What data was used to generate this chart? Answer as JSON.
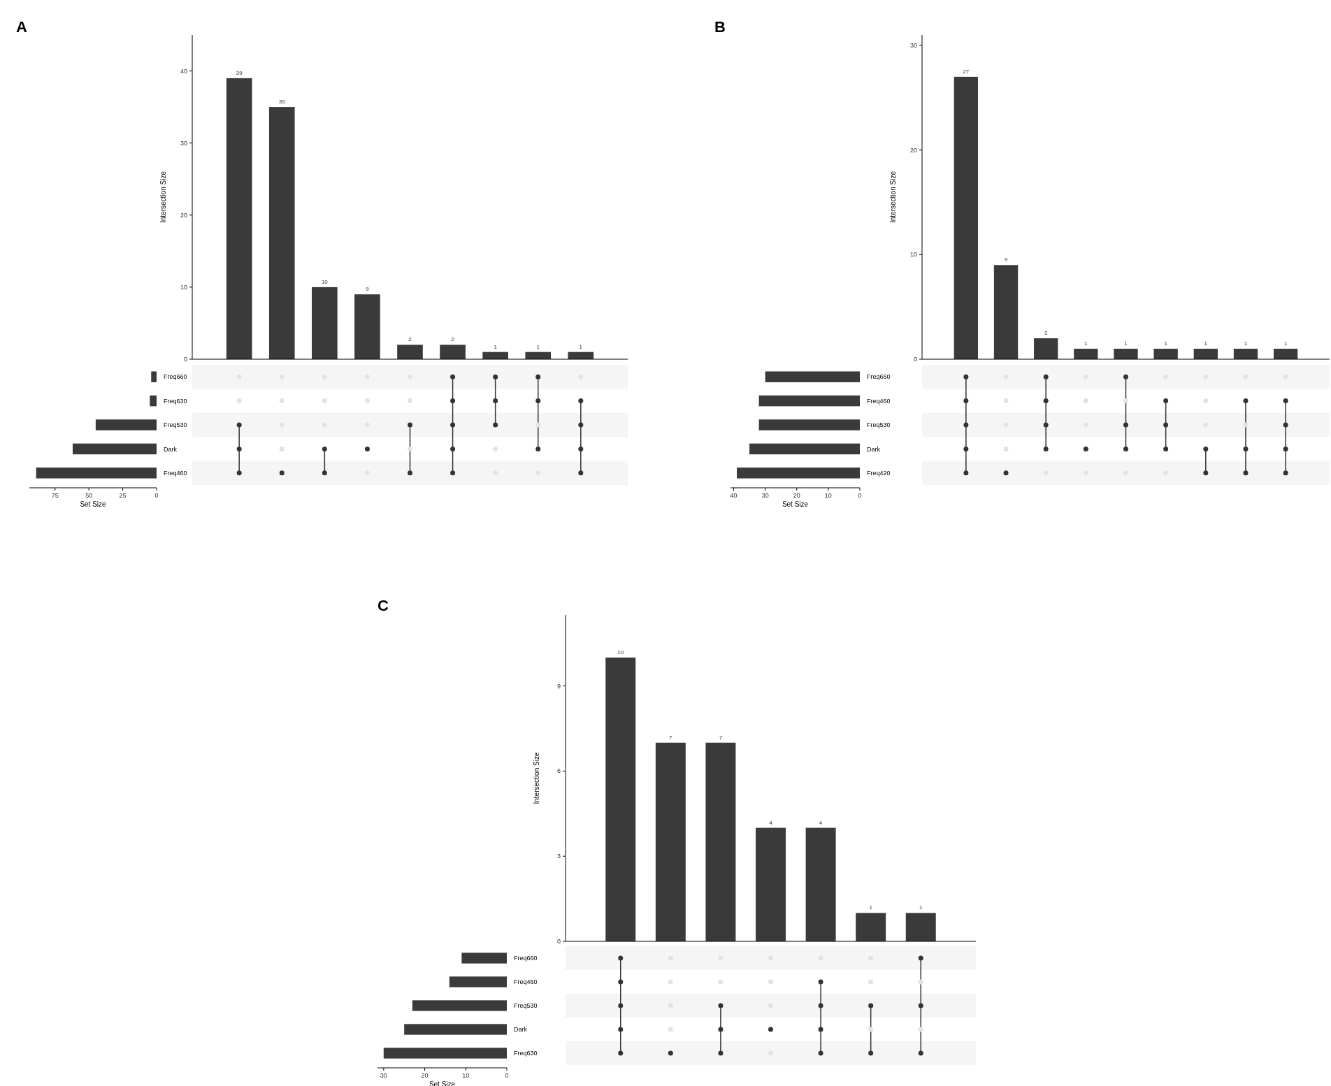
{
  "chart_data": [
    {
      "type": "bar",
      "ylabel": "Intersection Size",
      "categories": [
        null,
        null,
        null,
        null,
        null,
        null,
        null,
        null,
        null
      ],
      "values": [
        39,
        35,
        10,
        9,
        2,
        2,
        1,
        1,
        1
      ],
      "color": "#3a3a3a",
      "ylim": [
        0,
        45
      ],
      "yticks": [
        0,
        10,
        20,
        30,
        40
      ],
      "data_labels": true
    },
    {
      "type": "bar",
      "title": "A",
      "orientation": "horizontal",
      "xlabel": "Set Size",
      "categories": [
        "Freq660",
        "Freq630",
        "Freq530",
        "Dark",
        "Freq460"
      ],
      "values": [
        4,
        5,
        45,
        62,
        89
      ],
      "color": "#3a3a3a",
      "xlim": [
        94,
        0
      ],
      "xticks": [
        75,
        50,
        25,
        0
      ]
    },
    {
      "type": "bar",
      "ylabel": "Intersection Size",
      "categories": [
        null,
        null,
        null,
        null,
        null,
        null,
        null,
        null,
        null
      ],
      "values": [
        27,
        9,
        2,
        1,
        1,
        1,
        1,
        1,
        1
      ],
      "color": "#3a3a3a",
      "ylim": [
        0,
        31
      ],
      "yticks": [
        0,
        10,
        20,
        30
      ],
      "data_labels": true
    },
    {
      "type": "bar",
      "title": "B",
      "orientation": "horizontal",
      "xlabel": "Set Size",
      "categories": [
        "Freq660",
        "Freq460",
        "Freq530",
        "Dark",
        "Freq420"
      ],
      "values": [
        30,
        32,
        32,
        35,
        39
      ],
      "color": "#3a3a3a",
      "xlim": [
        41,
        0
      ],
      "xticks": [
        40,
        30,
        20,
        10,
        0
      ]
    },
    {
      "type": "bar",
      "ylabel": "Intersection Size",
      "categories": [
        null,
        null,
        null,
        null,
        null,
        null,
        null
      ],
      "values": [
        10,
        7,
        7,
        4,
        4,
        1,
        1
      ],
      "color": "#3a3a3a",
      "ylim": [
        0,
        11.5
      ],
      "yticks": [
        0,
        3,
        6,
        9
      ],
      "data_labels": true
    },
    {
      "type": "bar",
      "title": "C",
      "orientation": "horizontal",
      "xlabel": "Set Size",
      "categories": [
        "Freq660",
        "Freq460",
        "Freq530",
        "Dark",
        "Freq630"
      ],
      "values": [
        11,
        14,
        23,
        25,
        30
      ],
      "color": "#3a3a3a",
      "xlim": [
        31.5,
        0
      ],
      "xticks": [
        30,
        20,
        10,
        0
      ]
    }
  ]
}
